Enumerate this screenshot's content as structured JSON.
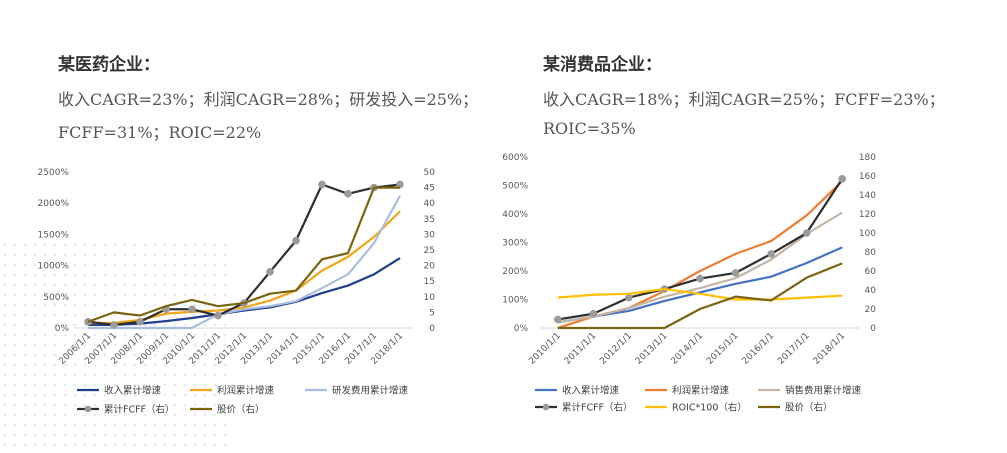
{
  "panels": [
    {
      "title": "某医药企业：",
      "line1": "收入CAGR=23%；利润CAGR=28%；研发投入=25%；",
      "line2": "FCFF=31%；ROIC=22%"
    },
    {
      "title": "某消费品企业：",
      "line1": "收入CAGR=18%；利润CAGR=25%；FCFF=23%；",
      "line2": "ROIC=35%"
    }
  ],
  "chart_data": [
    {
      "type": "line",
      "categories": [
        "2006/1/1",
        "2007/1/1",
        "2008/1/1",
        "2009/1/1",
        "2010/1/1",
        "2011/1/1",
        "2012/1/1",
        "2013/1/1",
        "2014/1/1",
        "2015/1/1",
        "2016/1/1",
        "2017/1/1",
        "2018/1/1"
      ],
      "y_left": {
        "min": 0,
        "max": 2500,
        "step": 500,
        "tick_suffix": "%"
      },
      "y_right": {
        "min": 0,
        "max": 50,
        "step": 5
      },
      "series": [
        {
          "name": "收入累计增速",
          "axis": "left",
          "color": "#1f3f8f",
          "marker": false,
          "values": [
            50,
            50,
            70,
            110,
            160,
            220,
            280,
            330,
            420,
            560,
            680,
            860,
            1120
          ]
        },
        {
          "name": "利润累计增速",
          "axis": "left",
          "color": "#f2a516",
          "marker": false,
          "values": [
            80,
            80,
            130,
            230,
            260,
            280,
            330,
            440,
            600,
            920,
            1140,
            1460,
            1870
          ]
        },
        {
          "name": "研发费用累计增速",
          "axis": "left",
          "color": "#a9bde0",
          "marker": false,
          "values": [
            0,
            0,
            0,
            0,
            0,
            220,
            300,
            350,
            430,
            640,
            860,
            1360,
            2120
          ]
        },
        {
          "name": "累计FCFF（右）",
          "axis": "right",
          "color": "#2f2f2f",
          "marker": true,
          "marker_color": "#9a9a9a",
          "values": [
            2,
            1,
            2,
            6,
            6,
            4,
            8,
            18,
            28,
            46,
            43,
            45,
            46
          ]
        },
        {
          "name": "股价（右）",
          "axis": "right",
          "color": "#7a6410",
          "marker": false,
          "values": [
            2,
            5,
            4,
            7,
            9,
            7,
            8,
            11,
            12,
            22,
            24,
            45,
            45
          ]
        }
      ]
    },
    {
      "type": "line",
      "categories": [
        "2010/1/1",
        "2011/1/1",
        "2012/1/1",
        "2013/1/1",
        "2014/1/1",
        "2015/1/1",
        "2016/1/1",
        "2017/1/1",
        "2018/1/1"
      ],
      "y_left": {
        "min": 0,
        "max": 600,
        "step": 100,
        "tick_suffix": "%"
      },
      "y_right": {
        "min": 0,
        "max": 180,
        "step": 20
      },
      "series": [
        {
          "name": "收入累计增速",
          "axis": "left",
          "color": "#4472c4",
          "marker": false,
          "values": [
            20,
            40,
            60,
            95,
            125,
            155,
            180,
            228,
            283
          ]
        },
        {
          "name": "利润累计增速",
          "axis": "left",
          "color": "#ed7d31",
          "marker": false,
          "values": [
            0,
            40,
            70,
            130,
            200,
            260,
            305,
            395,
            515
          ]
        },
        {
          "name": "销售费用累计增速",
          "axis": "left",
          "color": "#c5b3a3",
          "marker": false,
          "values": [
            20,
            40,
            70,
            110,
            140,
            175,
            240,
            330,
            405
          ]
        },
        {
          "name": "累计FCFF（右）",
          "axis": "right",
          "color": "#2f2f2f",
          "marker": true,
          "marker_color": "#9a9a9a",
          "values": [
            9,
            15,
            32,
            41,
            52,
            58,
            78,
            100,
            157
          ]
        },
        {
          "name": "ROIC*100（右）",
          "axis": "right",
          "color": "#ffc000",
          "marker": false,
          "values": [
            32,
            35,
            36,
            41,
            36,
            30,
            30,
            32,
            34
          ]
        },
        {
          "name": "股价（右）",
          "axis": "right",
          "color": "#7a6410",
          "marker": false,
          "values": [
            0,
            0,
            0,
            0,
            20,
            33,
            29,
            53,
            68
          ]
        }
      ]
    }
  ]
}
